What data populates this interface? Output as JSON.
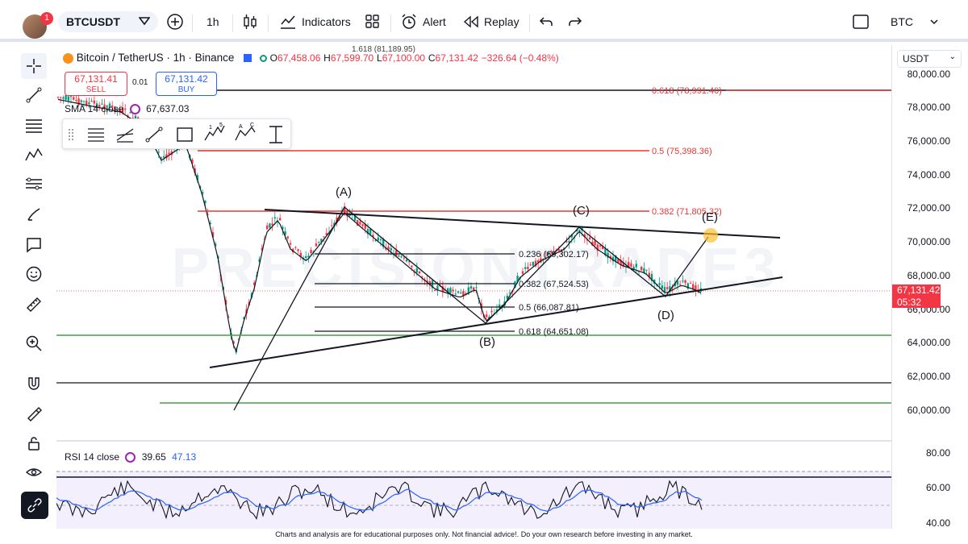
{
  "topbar": {
    "notification_count": "1",
    "symbol": "BTCUSDT",
    "interval": "1h",
    "indicators_label": "Indicators",
    "alert_label": "Alert",
    "replay_label": "Replay",
    "right_symbol": "BTC"
  },
  "header": {
    "title": "Bitcoin / TetherUS · 1h · Binance",
    "open_label": "O",
    "open": "67,458.06",
    "high_label": "H",
    "high": "67,599.70",
    "low_label": "L",
    "low": "67,100.00",
    "close_label": "C",
    "close": "67,131.42",
    "change": "−326.64 (−0.48%)",
    "fib_top": "1.618 (81,189.95)"
  },
  "trade": {
    "sell_price": "67,131.41",
    "sell_label": "SELL",
    "spread": "0.01",
    "buy_price": "67,131.42",
    "buy_label": "BUY"
  },
  "sma": {
    "label": "SMA 14 close",
    "value": "67,637.03"
  },
  "price_axis": {
    "currency": "USDT",
    "labels": [
      "80,000.00",
      "78,000.00",
      "76,000.00",
      "74,000.00",
      "72,000.00",
      "70,000.00",
      "68,000.00",
      "66,000.00",
      "64,000.00",
      "62,000.00",
      "60,000.00"
    ],
    "current_price": "67,131.42",
    "countdown": "05:32"
  },
  "fib_upper": [
    {
      "label": "0.618 (78,991.40)"
    },
    {
      "label": "0.5 (75,398.36)"
    },
    {
      "label": "0.382 (71,805.32)"
    }
  ],
  "fib_lower": [
    {
      "label": "0.236 (69,302.17)"
    },
    {
      "label": "0.382 (67,524.53)"
    },
    {
      "label": "0.5 (66,087.81)"
    },
    {
      "label": "0.618 (64,651.08)"
    }
  ],
  "waves": {
    "a": "(A)",
    "b": "(B)",
    "c": "(C)",
    "d": "(D)",
    "e": "(E)"
  },
  "watermark": "PRECISIONTRADE3",
  "rsi": {
    "label": "RSI 14 close",
    "value1": "39.65",
    "value2": "47.13",
    "axis": [
      "80.00",
      "60.00",
      "40.00"
    ]
  },
  "footer": "Charts and analysis are for educational purposes only. Not financial advice!. Do your own research before investing in any market.",
  "colors": {
    "up": "#089981",
    "down": "#f23645",
    "fib_red": "#e53935",
    "fib_green": "#4caf50",
    "accent": "#2962ff"
  }
}
